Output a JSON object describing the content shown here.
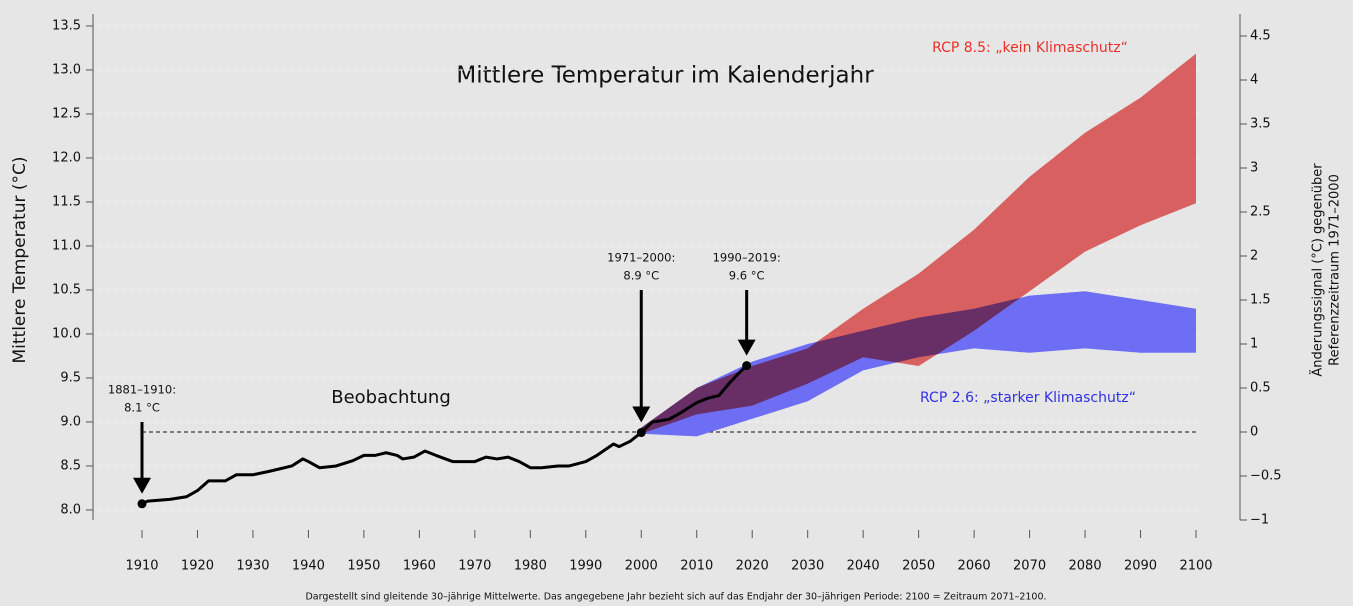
{
  "chart_data": {
    "type": "line",
    "title": "Mittlere Temperatur im Kalenderjahr",
    "ylabel": "Mittlere Temperatur (°C)",
    "y2label": [
      "Änderungssignal (°C) gegenüber",
      "Referenzzeitraum 1971–2000"
    ],
    "footnote": "Dargestellt sind gleitende 30–jährige Mittelwerte. Das angegebene Jahr bezieht sich auf das Endjahr der 30–jährigen Periode: 2100 = Zeitraum 2071–2100.",
    "xlim": [
      1910,
      2100
    ],
    "xticks": [
      1910,
      1920,
      1930,
      1940,
      1950,
      1960,
      1970,
      1980,
      1990,
      2000,
      2010,
      2020,
      2030,
      2040,
      2050,
      2060,
      2070,
      2080,
      2090,
      2100
    ],
    "ylim": [
      7.886,
      13.636
    ],
    "yticks": [
      {
        "value": 8,
        "label": "8.0"
      },
      8.5,
      {
        "value": 9,
        "label": "9.0"
      },
      9.5,
      {
        "value": 10,
        "label": "10.0"
      },
      10.5,
      {
        "value": 11,
        "label": "11.0"
      },
      11.5,
      {
        "value": 12,
        "label": "12.0"
      },
      12.5,
      {
        "value": 13,
        "label": "13.0"
      },
      13.5
    ],
    "y2lim": [
      -1,
      4.75
    ],
    "y2ticks": [
      {
        "value": -1,
        "label": "−1"
      },
      {
        "value": -0.5,
        "label": "−0.5"
      },
      0,
      0.5,
      1,
      1.5,
      2,
      2.5,
      3,
      3.5,
      4,
      4.5
    ],
    "grid": true,
    "series": [
      {
        "name": "Beobachtung",
        "color": "#000000",
        "x": [
          1910,
          1911,
          1915,
          1918,
          1920,
          1922,
          1925,
          1927,
          1930,
          1933,
          1935,
          1937,
          1939,
          1940,
          1942,
          1945,
          1948,
          1950,
          1952,
          1954,
          1956,
          1957,
          1959,
          1961,
          1963,
          1966,
          1970,
          1972,
          1974,
          1976,
          1978,
          1980,
          1982,
          1985,
          1987,
          1990,
          1992,
          1995,
          1996,
          1998,
          2000,
          2002,
          2005,
          2007,
          2010,
          2012,
          2014,
          2016,
          2018,
          2019
        ],
        "values": [
          8.07,
          8.1,
          8.12,
          8.15,
          8.22,
          8.33,
          8.33,
          8.4,
          8.4,
          8.44,
          8.47,
          8.5,
          8.58,
          8.55,
          8.48,
          8.5,
          8.56,
          8.62,
          8.62,
          8.65,
          8.62,
          8.58,
          8.6,
          8.67,
          8.62,
          8.55,
          8.55,
          8.6,
          8.58,
          8.6,
          8.55,
          8.48,
          8.48,
          8.5,
          8.5,
          8.55,
          8.62,
          8.75,
          8.72,
          8.78,
          8.88,
          9.0,
          9.03,
          9.1,
          9.22,
          9.27,
          9.3,
          9.45,
          9.58,
          9.64
        ]
      }
    ],
    "bands": [
      {
        "name": "RCP 2.6: „starker Klimaschutz“",
        "color": "#6e6ef5",
        "axis": "y2",
        "x": [
          2000,
          2010,
          2020,
          2030,
          2040,
          2050,
          2060,
          2070,
          2080,
          2090,
          2100
        ],
        "upper": [
          0.05,
          0.5,
          0.8,
          1.0,
          1.15,
          1.3,
          1.4,
          1.55,
          1.6,
          1.5,
          1.4
        ],
        "lower": [
          -0.02,
          -0.05,
          0.15,
          0.35,
          0.7,
          0.85,
          0.95,
          0.9,
          0.95,
          0.9,
          0.9
        ]
      },
      {
        "name": "RCP 8.5: „kein Klimaschutz“",
        "color": "#f06a6a",
        "axis": "y2",
        "x": [
          2000,
          2010,
          2020,
          2030,
          2040,
          2050,
          2060,
          2070,
          2080,
          2090,
          2100
        ],
        "upper": [
          0.05,
          0.5,
          0.75,
          0.95,
          1.4,
          1.8,
          2.3,
          2.9,
          3.4,
          3.8,
          4.3
        ],
        "lower": [
          -0.02,
          0.2,
          0.3,
          0.55,
          0.85,
          0.75,
          1.15,
          1.6,
          2.05,
          2.35,
          2.6
        ]
      }
    ],
    "annotations": [
      {
        "lines": [
          "1881–1910:",
          "8.1 °C"
        ]
      },
      {
        "lines": [
          "1971–2000:",
          "8.9 °C"
        ]
      },
      {
        "lines": [
          "1990–2019:",
          "9.6 °C"
        ]
      }
    ]
  }
}
